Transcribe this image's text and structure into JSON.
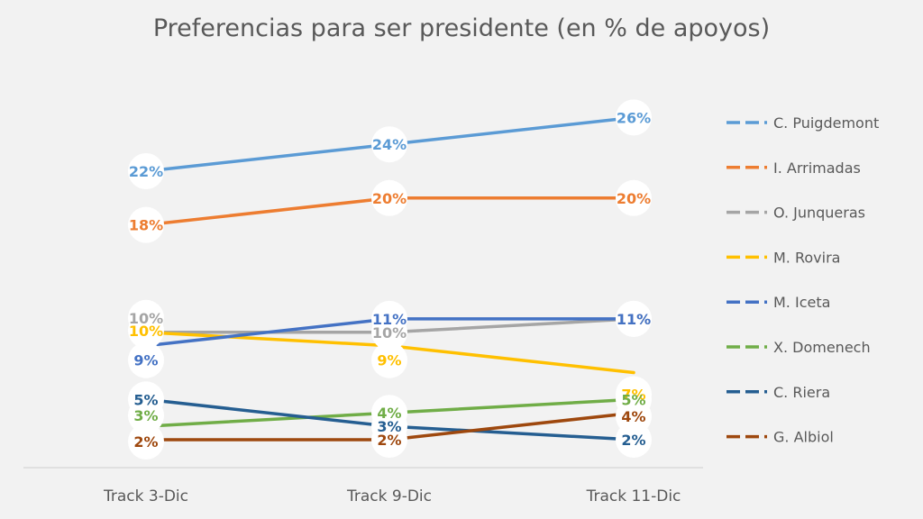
{
  "chart_data": {
    "type": "line",
    "title": "Preferencias para ser presidente (en % de apoyos)",
    "xlabel": "",
    "ylabel": "",
    "ylim": [
      0,
      30
    ],
    "grid": false,
    "legend_position": "right",
    "categories": [
      "Track 3-Dic",
      "Track 9-Dic",
      "Track 11-Dic"
    ],
    "series": [
      {
        "name": "C. Puigdemont",
        "color": "#5b9bd5",
        "values": [
          22,
          24,
          26
        ],
        "labels": [
          "22%",
          "24%",
          "26%"
        ]
      },
      {
        "name": "I. Arrimadas",
        "color": "#ed7d31",
        "values": [
          18,
          20,
          20
        ],
        "labels": [
          "18%",
          "20%",
          "20%"
        ]
      },
      {
        "name": "O. Junqueras",
        "color": "#a5a5a5",
        "values": [
          10,
          10,
          11
        ],
        "labels": [
          "10%",
          "10%",
          "11%"
        ]
      },
      {
        "name": "M. Rovira",
        "color": "#ffc000",
        "values": [
          10,
          9,
          7
        ],
        "labels": [
          "10%",
          "9%",
          "7%"
        ]
      },
      {
        "name": "M. Iceta",
        "color": "#4472c4",
        "values": [
          9,
          11,
          11
        ],
        "labels": [
          "9%",
          "11%",
          "11%"
        ]
      },
      {
        "name": "X. Domenech",
        "color": "#70ad47",
        "values": [
          3,
          4,
          5
        ],
        "labels": [
          "3%",
          "4%",
          "5%"
        ]
      },
      {
        "name": "C. Riera",
        "color": "#255e91",
        "values": [
          5,
          3,
          2
        ],
        "labels": [
          "5%",
          "3%",
          "2%"
        ]
      },
      {
        "name": "G. Albiol",
        "color": "#9e480e",
        "values": [
          2,
          2,
          4
        ],
        "labels": [
          "2%",
          "2%",
          "4%"
        ]
      }
    ]
  }
}
